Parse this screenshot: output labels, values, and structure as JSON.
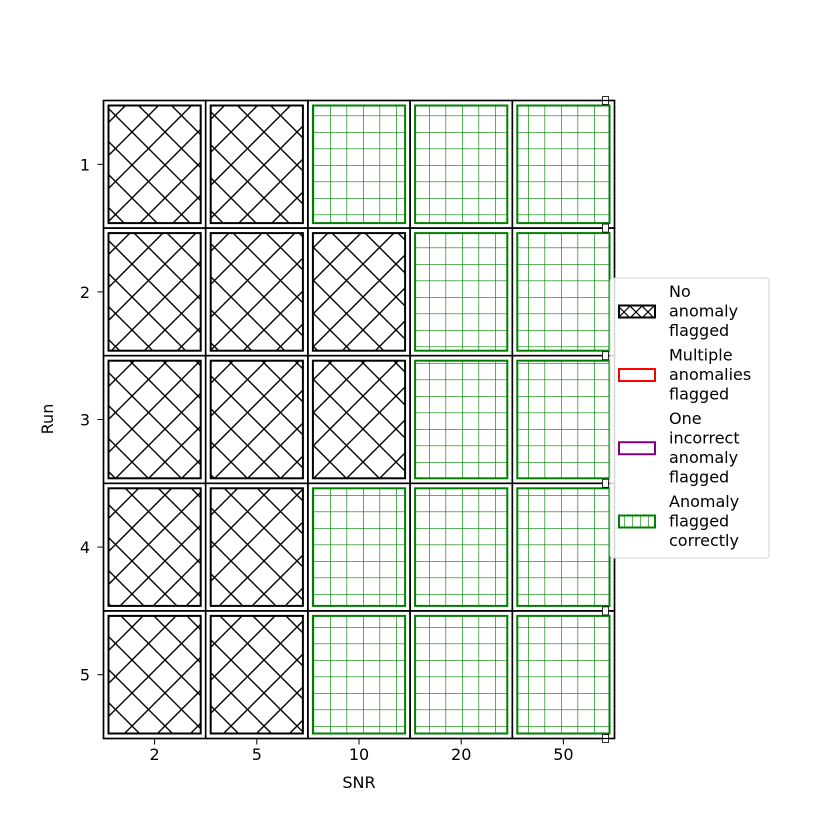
{
  "chart_data": {
    "type": "heatmap",
    "title": "",
    "xlabel": "SNR",
    "ylabel": "Run",
    "x_categories": [
      "2",
      "5",
      "10",
      "20",
      "50"
    ],
    "y_categories": [
      "1",
      "2",
      "3",
      "4",
      "5"
    ],
    "cells": [
      [
        "no_anomaly",
        "no_anomaly",
        "correct",
        "correct",
        "correct"
      ],
      [
        "no_anomaly",
        "no_anomaly",
        "no_anomaly",
        "correct",
        "correct"
      ],
      [
        "no_anomaly",
        "no_anomaly",
        "no_anomaly",
        "correct",
        "correct"
      ],
      [
        "no_anomaly",
        "no_anomaly",
        "correct",
        "correct",
        "correct"
      ],
      [
        "no_anomaly",
        "no_anomaly",
        "correct",
        "correct",
        "correct"
      ]
    ],
    "categories": {
      "no_anomaly": {
        "color": "#000000",
        "hatch": "diagonal-cross"
      },
      "multiple": {
        "color": "#ff0000",
        "hatch": "none"
      },
      "incorrect": {
        "color": "#800080",
        "hatch": "none"
      },
      "correct": {
        "color": "#008000",
        "hatch": "grid"
      }
    },
    "legend": {
      "placement": "right",
      "entries": [
        {
          "key": "no_anomaly",
          "lines": [
            "No",
            "anomaly",
            "flagged"
          ]
        },
        {
          "key": "multiple",
          "lines": [
            "Multiple",
            "anomalies",
            "flagged"
          ]
        },
        {
          "key": "incorrect",
          "lines": [
            "One",
            "incorrect",
            "anomaly",
            "flagged"
          ]
        },
        {
          "key": "correct",
          "lines": [
            "Anomaly",
            "flagged",
            "correctly"
          ]
        }
      ]
    }
  }
}
